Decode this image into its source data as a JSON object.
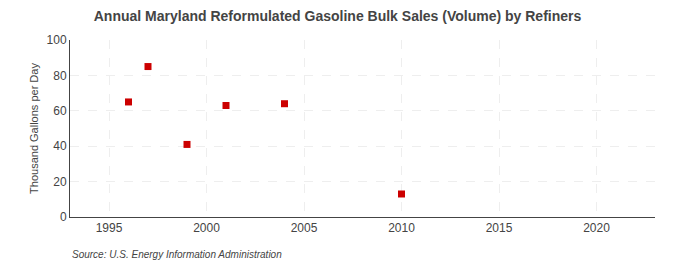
{
  "chart_data": {
    "type": "scatter",
    "title": "Annual Maryland Reformulated Gasoline Bulk Sales (Volume) by Refiners",
    "y_label": "Thousand Gallons per Day",
    "annotations": [
      "Source: U.S. Energy Information Administration"
    ],
    "x": [
      1996,
      1997,
      1999,
      2001,
      2004,
      2010
    ],
    "values": [
      65,
      85,
      41,
      63,
      64,
      13
    ],
    "color": "#cc0000",
    "marker": "square",
    "xlim": [
      1993,
      2023
    ],
    "ylim": [
      0,
      100
    ],
    "xticks": [
      1995,
      2000,
      2005,
      2010,
      2015,
      2020
    ],
    "yticks": [
      0,
      20,
      40,
      60,
      80,
      100
    ],
    "grid": true
  }
}
